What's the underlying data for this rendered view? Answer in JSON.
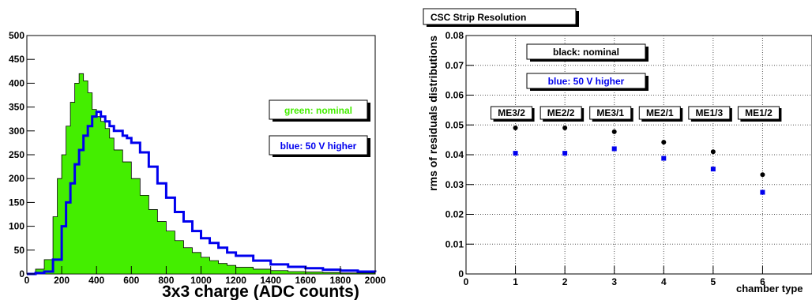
{
  "chart_data": [
    {
      "type": "histogram",
      "xlabel": "3x3 charge (ADC counts)",
      "ylabel": "",
      "xlim": [
        0,
        2000
      ],
      "ylim": [
        0,
        500
      ],
      "xticks": [
        "0",
        "200",
        "400",
        "600",
        "800",
        "1000",
        "1200",
        "1400",
        "1600",
        "1800",
        "2000"
      ],
      "yticks": [
        "0",
        "50",
        "100",
        "150",
        "200",
        "250",
        "300",
        "350",
        "400",
        "450",
        "500"
      ],
      "legend": [
        {
          "text": "green: nominal",
          "color": "#44ee00"
        },
        {
          "text": "blue: 50 V higher",
          "color": "#0000ee"
        }
      ],
      "series": [
        {
          "color": "#44ee00",
          "style": "filled",
          "x": [
            0,
            50,
            100,
            150,
            175,
            200,
            225,
            250,
            275,
            300,
            325,
            350,
            375,
            400,
            425,
            450,
            475,
            500,
            550,
            600,
            650,
            700,
            750,
            800,
            850,
            900,
            950,
            1000,
            1050,
            1100,
            1150,
            1200,
            1300,
            1400,
            1500,
            1600,
            1700,
            1800,
            1900,
            2000
          ],
          "values": [
            0,
            10,
            30,
            120,
            200,
            250,
            310,
            360,
            400,
            420,
            405,
            380,
            345,
            330,
            320,
            305,
            285,
            260,
            235,
            200,
            165,
            135,
            110,
            90,
            70,
            55,
            45,
            35,
            28,
            22,
            18,
            14,
            10,
            7,
            5,
            4,
            3,
            2,
            2,
            1
          ]
        },
        {
          "color": "#0000ee",
          "style": "step",
          "x": [
            0,
            50,
            100,
            150,
            200,
            225,
            250,
            275,
            300,
            325,
            350,
            375,
            400,
            425,
            450,
            475,
            500,
            525,
            550,
            575,
            600,
            650,
            700,
            750,
            800,
            850,
            900,
            950,
            1000,
            1050,
            1100,
            1150,
            1200,
            1300,
            1400,
            1500,
            1600,
            1700,
            1800,
            1900,
            2000
          ],
          "values": [
            0,
            2,
            5,
            30,
            100,
            150,
            190,
            230,
            260,
            290,
            310,
            330,
            340,
            330,
            320,
            310,
            300,
            300,
            290,
            285,
            275,
            255,
            225,
            190,
            160,
            130,
            110,
            90,
            75,
            65,
            55,
            45,
            38,
            28,
            20,
            15,
            12,
            9,
            7,
            5,
            4
          ]
        }
      ]
    },
    {
      "type": "scatter",
      "title": "CSC Strip Resolution",
      "xlabel": "chamber type",
      "ylabel": "rms of residuals distributions",
      "xlim": [
        0,
        7
      ],
      "ylim": [
        0,
        0.08
      ],
      "grid": true,
      "xticks": [
        "0",
        "1",
        "2",
        "3",
        "4",
        "5",
        "6"
      ],
      "yticks": [
        "0",
        "0.01",
        "0.02",
        "0.03",
        "0.04",
        "0.05",
        "0.06",
        "0.07",
        "0.08"
      ],
      "legend": [
        {
          "text": "black: nominal",
          "color": "#000000"
        },
        {
          "text": "blue: 50 V higher",
          "color": "#0000ee"
        }
      ],
      "annotations": [
        {
          "text": "ME3/2",
          "x": 1
        },
        {
          "text": "ME2/2",
          "x": 2
        },
        {
          "text": "ME3/1",
          "x": 3
        },
        {
          "text": "ME2/1",
          "x": 4
        },
        {
          "text": "ME1/3",
          "x": 5
        },
        {
          "text": "ME1/2",
          "x": 6
        }
      ],
      "series": [
        {
          "color": "#000000",
          "marker": "circle",
          "x": [
            1,
            2,
            3,
            4,
            5,
            6
          ],
          "values": [
            0.049,
            0.049,
            0.0477,
            0.0442,
            0.041,
            0.0333
          ]
        },
        {
          "color": "#0000ee",
          "marker": "square",
          "x": [
            1,
            2,
            3,
            4,
            5,
            6
          ],
          "values": [
            0.0405,
            0.0405,
            0.042,
            0.0388,
            0.0352,
            0.0274
          ]
        }
      ]
    }
  ]
}
